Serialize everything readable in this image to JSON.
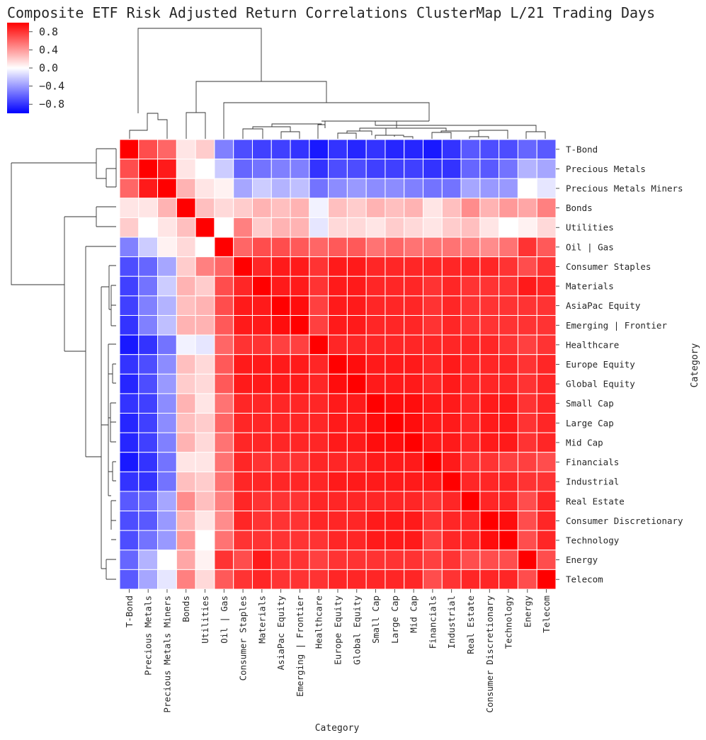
{
  "chart_data": {
    "type": "heatmap",
    "title": "Composite ETF Risk Adjusted Return Correlations ClusterMap L/21 Trading Days",
    "xlabel": "Category",
    "ylabel": "Category",
    "colormap": "bwr",
    "vmin": -1,
    "vmax": 1,
    "colors": {
      "low": "#0000ff",
      "mid": "#ffffff",
      "high": "#ff0000",
      "text": "#262626",
      "dendrogram": "#333333"
    },
    "colorbar_ticks": [
      {
        "value": 0.8,
        "label": "0.8"
      },
      {
        "value": 0.4,
        "label": "0.4"
      },
      {
        "value": 0.0,
        "label": "0.0"
      },
      {
        "value": -0.4,
        "label": "−0.4"
      },
      {
        "value": -0.8,
        "label": "−0.8"
      }
    ],
    "categories": [
      "T-Bond",
      "Precious Metals",
      "Precious Metals Miners",
      "Bonds",
      "Utilities",
      "Oil | Gas",
      "Consumer Staples",
      "Materials",
      "AsiaPac Equity",
      "Emerging | Frontier",
      "Healthcare",
      "Europe Equity",
      "Global Equity",
      "Small Cap",
      "Large Cap",
      "Mid Cap",
      "Financials",
      "Industrial",
      "Real Estate",
      "Consumer Discretionary",
      "Technology",
      "Energy",
      "Telecom"
    ],
    "matrix": [
      [
        1.0,
        0.7,
        0.6,
        0.1,
        0.2,
        -0.5,
        -0.7,
        -0.75,
        -0.75,
        -0.8,
        -0.9,
        -0.8,
        -0.85,
        -0.8,
        -0.85,
        -0.85,
        -0.9,
        -0.8,
        -0.65,
        -0.7,
        -0.7,
        -0.6,
        -0.65
      ],
      [
        0.7,
        1.0,
        0.9,
        0.1,
        0.0,
        -0.2,
        -0.6,
        -0.55,
        -0.5,
        -0.5,
        -0.8,
        -0.7,
        -0.7,
        -0.75,
        -0.75,
        -0.75,
        -0.8,
        -0.8,
        -0.6,
        -0.65,
        -0.55,
        -0.3,
        -0.35
      ],
      [
        0.6,
        0.9,
        1.0,
        0.3,
        0.1,
        0.05,
        -0.35,
        -0.2,
        -0.3,
        -0.25,
        -0.55,
        -0.45,
        -0.4,
        -0.45,
        -0.45,
        -0.5,
        -0.55,
        -0.55,
        -0.35,
        -0.4,
        -0.4,
        0.0,
        -0.1
      ],
      [
        0.1,
        0.1,
        0.3,
        1.0,
        0.25,
        0.15,
        0.2,
        0.3,
        0.25,
        0.3,
        -0.05,
        0.25,
        0.2,
        0.3,
        0.25,
        0.3,
        0.1,
        0.25,
        0.45,
        0.3,
        0.4,
        0.35,
        0.5
      ],
      [
        0.2,
        0.0,
        0.1,
        0.25,
        1.0,
        0.0,
        0.5,
        0.2,
        0.3,
        0.3,
        -0.1,
        0.15,
        0.15,
        0.1,
        0.2,
        0.15,
        0.1,
        0.2,
        0.25,
        0.1,
        0.0,
        0.05,
        0.15
      ],
      [
        -0.5,
        -0.2,
        0.05,
        0.15,
        0.0,
        1.0,
        0.6,
        0.7,
        0.7,
        0.65,
        0.6,
        0.65,
        0.65,
        0.55,
        0.6,
        0.55,
        0.55,
        0.55,
        0.5,
        0.45,
        0.55,
        0.8,
        0.65
      ],
      [
        -0.7,
        -0.6,
        -0.35,
        0.2,
        0.5,
        0.6,
        1.0,
        0.85,
        0.9,
        0.9,
        0.8,
        0.9,
        0.9,
        0.85,
        0.85,
        0.85,
        0.85,
        0.85,
        0.85,
        0.85,
        0.8,
        0.7,
        0.8
      ],
      [
        -0.75,
        -0.55,
        -0.2,
        0.3,
        0.2,
        0.7,
        0.85,
        1.0,
        0.9,
        0.9,
        0.8,
        0.9,
        0.9,
        0.85,
        0.85,
        0.85,
        0.8,
        0.85,
        0.8,
        0.8,
        0.8,
        0.9,
        0.85
      ],
      [
        -0.75,
        -0.5,
        -0.3,
        0.25,
        0.3,
        0.7,
        0.9,
        0.9,
        1.0,
        0.95,
        0.75,
        0.9,
        0.9,
        0.85,
        0.85,
        0.85,
        0.8,
        0.85,
        0.8,
        0.8,
        0.8,
        0.8,
        0.8
      ],
      [
        -0.8,
        -0.5,
        -0.25,
        0.3,
        0.3,
        0.65,
        0.9,
        0.9,
        0.95,
        1.0,
        0.75,
        0.9,
        0.9,
        0.85,
        0.85,
        0.85,
        0.8,
        0.85,
        0.8,
        0.8,
        0.8,
        0.8,
        0.8
      ],
      [
        -0.9,
        -0.8,
        -0.55,
        -0.05,
        -0.1,
        0.6,
        0.8,
        0.8,
        0.75,
        0.75,
        1.0,
        0.85,
        0.85,
        0.85,
        0.85,
        0.85,
        0.85,
        0.85,
        0.85,
        0.85,
        0.8,
        0.75,
        0.8
      ],
      [
        -0.8,
        -0.7,
        -0.45,
        0.25,
        0.15,
        0.65,
        0.9,
        0.9,
        0.9,
        0.9,
        0.85,
        1.0,
        0.95,
        0.9,
        0.9,
        0.9,
        0.85,
        0.9,
        0.85,
        0.85,
        0.85,
        0.8,
        0.85
      ],
      [
        -0.85,
        -0.7,
        -0.4,
        0.2,
        0.15,
        0.65,
        0.9,
        0.9,
        0.9,
        0.9,
        0.85,
        0.95,
        1.0,
        0.9,
        0.9,
        0.9,
        0.85,
        0.9,
        0.85,
        0.85,
        0.85,
        0.8,
        0.85
      ],
      [
        -0.8,
        -0.75,
        -0.45,
        0.3,
        0.1,
        0.55,
        0.85,
        0.85,
        0.85,
        0.85,
        0.85,
        0.9,
        0.9,
        1.0,
        0.95,
        0.95,
        0.9,
        0.9,
        0.85,
        0.9,
        0.9,
        0.8,
        0.85
      ],
      [
        -0.85,
        -0.75,
        -0.45,
        0.25,
        0.2,
        0.6,
        0.85,
        0.85,
        0.85,
        0.85,
        0.85,
        0.9,
        0.9,
        0.95,
        1.0,
        0.95,
        0.9,
        0.9,
        0.85,
        0.9,
        0.9,
        0.8,
        0.85
      ],
      [
        -0.85,
        -0.75,
        -0.5,
        0.3,
        0.15,
        0.55,
        0.85,
        0.85,
        0.85,
        0.85,
        0.85,
        0.9,
        0.9,
        0.95,
        0.95,
        1.0,
        0.9,
        0.9,
        0.85,
        0.9,
        0.9,
        0.8,
        0.85
      ],
      [
        -0.9,
        -0.8,
        -0.55,
        0.1,
        0.1,
        0.55,
        0.85,
        0.8,
        0.8,
        0.8,
        0.85,
        0.85,
        0.85,
        0.9,
        0.9,
        0.9,
        1.0,
        0.9,
        0.8,
        0.8,
        0.75,
        0.75,
        0.7
      ],
      [
        -0.8,
        -0.8,
        -0.55,
        0.25,
        0.2,
        0.55,
        0.85,
        0.85,
        0.85,
        0.85,
        0.85,
        0.9,
        0.9,
        0.9,
        0.9,
        0.9,
        0.9,
        1.0,
        0.85,
        0.85,
        0.85,
        0.8,
        0.8
      ],
      [
        -0.65,
        -0.6,
        -0.35,
        0.45,
        0.25,
        0.5,
        0.85,
        0.8,
        0.8,
        0.8,
        0.85,
        0.85,
        0.85,
        0.85,
        0.85,
        0.85,
        0.8,
        0.85,
        1.0,
        0.85,
        0.85,
        0.7,
        0.85
      ],
      [
        -0.7,
        -0.65,
        -0.4,
        0.3,
        0.1,
        0.45,
        0.85,
        0.8,
        0.8,
        0.8,
        0.85,
        0.85,
        0.85,
        0.9,
        0.9,
        0.9,
        0.8,
        0.85,
        0.85,
        1.0,
        0.95,
        0.7,
        0.85
      ],
      [
        -0.7,
        -0.55,
        -0.4,
        0.4,
        0.0,
        0.55,
        0.8,
        0.8,
        0.8,
        0.8,
        0.8,
        0.85,
        0.85,
        0.9,
        0.9,
        0.9,
        0.75,
        0.85,
        0.85,
        0.95,
        1.0,
        0.7,
        0.85
      ],
      [
        -0.6,
        -0.3,
        0.0,
        0.35,
        0.05,
        0.8,
        0.7,
        0.9,
        0.8,
        0.8,
        0.75,
        0.8,
        0.8,
        0.8,
        0.8,
        0.8,
        0.75,
        0.8,
        0.7,
        0.7,
        0.7,
        1.0,
        0.7
      ],
      [
        -0.65,
        -0.35,
        -0.1,
        0.5,
        0.15,
        0.65,
        0.8,
        0.85,
        0.8,
        0.8,
        0.8,
        0.85,
        0.85,
        0.85,
        0.85,
        0.85,
        0.7,
        0.8,
        0.85,
        0.85,
        0.85,
        0.7,
        1.0
      ]
    ]
  }
}
